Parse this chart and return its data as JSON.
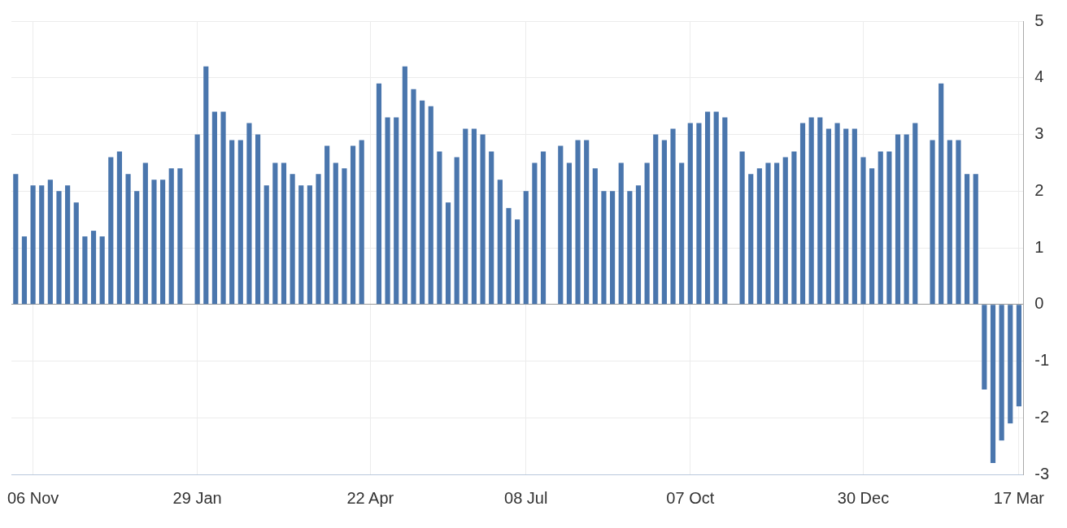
{
  "chart_data": {
    "type": "bar",
    "categories": [
      null,
      null,
      "06 Nov",
      null,
      null,
      null,
      null,
      null,
      null,
      null,
      null,
      null,
      null,
      null,
      null,
      null,
      null,
      null,
      null,
      null,
      null,
      "29 Jan",
      null,
      null,
      null,
      null,
      null,
      null,
      null,
      null,
      null,
      null,
      null,
      null,
      null,
      null,
      null,
      null,
      null,
      null,
      null,
      "22 Apr",
      null,
      null,
      null,
      null,
      null,
      null,
      null,
      null,
      null,
      null,
      null,
      null,
      null,
      null,
      null,
      null,
      null,
      "08 Jul",
      null,
      null,
      null,
      null,
      null,
      null,
      null,
      null,
      null,
      null,
      null,
      null,
      null,
      null,
      null,
      null,
      null,
      null,
      "07 Oct",
      null,
      null,
      null,
      null,
      null,
      null,
      null,
      null,
      null,
      null,
      null,
      null,
      null,
      null,
      null,
      null,
      null,
      null,
      null,
      "30 Dec",
      null,
      null,
      null,
      null,
      null,
      null,
      null,
      null,
      null,
      null,
      null,
      null,
      null,
      null,
      null,
      null,
      null,
      "17 Mar"
    ],
    "values": [
      2.3,
      1.2,
      2.1,
      2.1,
      2.2,
      2.0,
      2.1,
      1.8,
      1.2,
      1.3,
      1.2,
      2.6,
      2.7,
      2.3,
      2.0,
      2.5,
      2.2,
      2.2,
      2.4,
      2.4,
      null,
      3.0,
      4.2,
      3.4,
      3.4,
      2.9,
      2.9,
      3.2,
      3.0,
      2.1,
      2.5,
      2.5,
      2.3,
      2.1,
      2.1,
      2.3,
      2.8,
      2.5,
      2.4,
      2.8,
      2.9,
      null,
      3.9,
      3.3,
      3.3,
      4.2,
      3.8,
      3.6,
      3.5,
      2.7,
      1.8,
      2.6,
      3.1,
      3.1,
      3.0,
      2.7,
      2.2,
      1.7,
      1.5,
      2.0,
      2.5,
      2.7,
      null,
      2.8,
      2.5,
      2.9,
      2.9,
      2.4,
      2.0,
      2.0,
      2.5,
      2.0,
      2.1,
      2.5,
      3.0,
      2.9,
      3.1,
      2.5,
      3.2,
      3.2,
      3.4,
      3.4,
      3.3,
      null,
      2.7,
      2.3,
      2.4,
      2.5,
      2.5,
      2.6,
      2.7,
      3.2,
      3.3,
      3.3,
      3.1,
      3.2,
      3.1,
      3.1,
      2.6,
      2.4,
      2.7,
      2.7,
      3.0,
      3.0,
      3.2,
      null,
      2.9,
      3.9,
      2.9,
      2.9,
      2.3,
      2.3,
      -1.5,
      -2.8,
      -2.4,
      -2.1,
      -1.8
    ],
    "color": "#4a76ad",
    "ylim": [
      -3,
      5
    ],
    "yticks": [
      -3,
      -2,
      -1,
      0,
      1,
      2,
      3,
      4,
      5
    ],
    "grid": true,
    "legend": false
  }
}
